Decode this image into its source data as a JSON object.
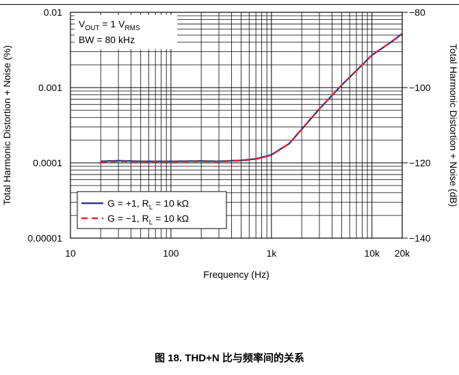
{
  "caption": "图 18. THD+N 比与频率间的关系",
  "chart_data": {
    "type": "line",
    "xlabel": "Frequency (Hz)",
    "ylabel": "Total Harmonic Distortion + Noise (%)",
    "y2label": "Total Harmonic Distortion + Noise (dB)",
    "x_scale": "log",
    "y_scale": "log",
    "xlim": [
      10,
      20000
    ],
    "ylim": [
      1e-05,
      0.01
    ],
    "y2lim": [
      -140,
      -80
    ],
    "x_tick_labels": [
      {
        "value": 10,
        "label": "10"
      },
      {
        "value": 100,
        "label": "100"
      },
      {
        "value": 1000,
        "label": "1k"
      },
      {
        "value": 10000,
        "label": "10k"
      },
      {
        "value": 20000,
        "label": "20k"
      }
    ],
    "y_tick_labels": [
      {
        "value": 0.01,
        "label": "0.01"
      },
      {
        "value": 0.001,
        "label": "0.001"
      },
      {
        "value": 0.0001,
        "label": "0.0001"
      },
      {
        "value": 1e-05,
        "label": "0.00001"
      }
    ],
    "y2_tick_labels": [
      {
        "value": -80,
        "label": "−80"
      },
      {
        "value": -100,
        "label": "−100"
      },
      {
        "value": -120,
        "label": "−120"
      },
      {
        "value": -140,
        "label": "−140"
      }
    ],
    "grid": true,
    "annotation": {
      "vout_prefix": "V",
      "vout_sub": "OUT",
      "vout_mid": " = 1 V",
      "vout_unit_sub": "RMS",
      "bw": "BW = 80 kHz"
    },
    "legend_position": "bottom-left",
    "series": [
      {
        "name_prefix": "G = +1, R",
        "name_sub": "L",
        "name_suffix": " = 10 kΩ",
        "color": "#2b3a8f",
        "dash": "solid",
        "x": [
          20,
          30,
          50,
          100,
          200,
          300,
          500,
          700,
          1000,
          1500,
          2000,
          3000,
          5000,
          7000,
          10000,
          15000,
          20000
        ],
        "values": [
          0.000105,
          0.000107,
          0.000105,
          0.000105,
          0.000106,
          0.000105,
          0.000108,
          0.000113,
          0.000128,
          0.00018,
          0.00028,
          0.00052,
          0.00108,
          0.00168,
          0.0027,
          0.0039,
          0.0052
        ]
      },
      {
        "name_prefix": "G = −1, R",
        "name_sub": "L",
        "name_suffix": " = 10 kΩ",
        "color": "#e3222a",
        "dash": "dashed",
        "x": [
          20,
          30,
          50,
          100,
          200,
          300,
          500,
          700,
          1000,
          1500,
          2000,
          3000,
          5000,
          7000,
          10000,
          15000,
          20000
        ],
        "values": [
          0.000103,
          0.000105,
          0.000104,
          0.000104,
          0.000105,
          0.000104,
          0.000107,
          0.000112,
          0.000127,
          0.00018,
          0.00028,
          0.00052,
          0.00108,
          0.00167,
          0.0027,
          0.0039,
          0.0051
        ]
      }
    ]
  }
}
